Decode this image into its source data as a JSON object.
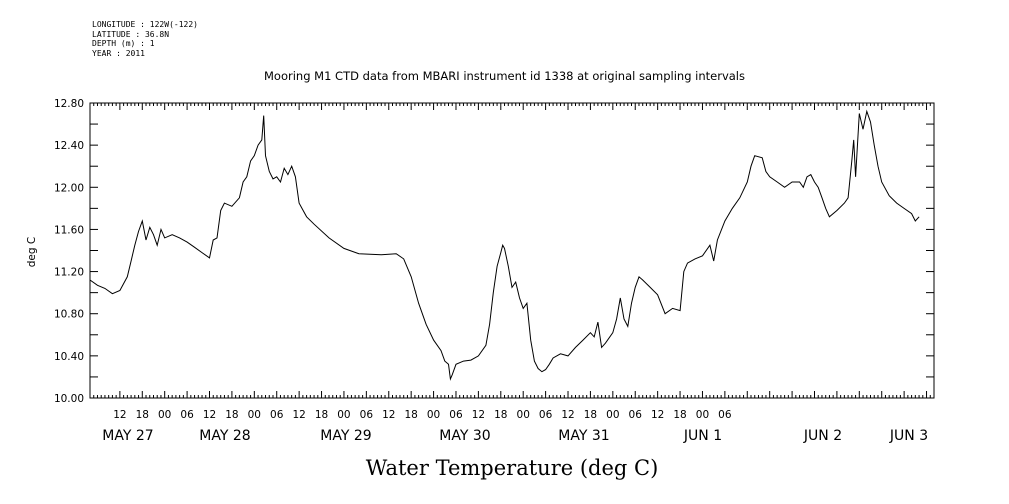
{
  "meta": {
    "longitude": "LONGITUDE : 122W(-122)",
    "latitude": "LATITUDE : 36.8N",
    "depth": "DEPTH (m) : 1",
    "year": "YEAR : 2011"
  },
  "chart_data": {
    "type": "line",
    "title": "Mooring M1 CTD data from MBARI instrument id 1338 at original sampling intervals",
    "xlabel": "Water Temperature (deg C)",
    "ylabel": "deg C",
    "ylim": [
      10.0,
      12.8
    ],
    "yticks": [
      "10.00",
      "10.40",
      "10.80",
      "11.20",
      "11.60",
      "12.00",
      "12.40",
      "12.80"
    ],
    "x_hour_labels": [
      "12",
      "18",
      "00",
      "06",
      "12",
      "18",
      "00",
      "06",
      "12",
      "18",
      "00",
      "06",
      "12",
      "18",
      "00",
      "06",
      "12",
      "18",
      "00",
      "06",
      "12",
      "18",
      "00",
      "06",
      "12",
      "18",
      "00",
      "06"
    ],
    "x_day_labels": [
      "MAY 27",
      "MAY 28",
      "MAY 29",
      "MAY 30",
      "MAY 31",
      "JUN  1",
      "JUN  2",
      "JUN  3"
    ],
    "series": [
      {
        "values": [
          [
            0.0,
            11.12
          ],
          [
            2.0,
            11.07
          ],
          [
            4.0,
            11.04
          ],
          [
            6.0,
            10.99
          ],
          [
            8.0,
            11.02
          ],
          [
            10.0,
            11.15
          ],
          [
            11.0,
            11.3
          ],
          [
            12.0,
            11.45
          ],
          [
            13.0,
            11.58
          ],
          [
            14.0,
            11.68
          ],
          [
            15.0,
            11.5
          ],
          [
            16.0,
            11.62
          ],
          [
            17.0,
            11.55
          ],
          [
            18.0,
            11.45
          ],
          [
            19.0,
            11.6
          ],
          [
            20.0,
            11.52
          ],
          [
            22.0,
            11.55
          ],
          [
            24.0,
            11.52
          ],
          [
            26.0,
            11.48
          ],
          [
            28.0,
            11.43
          ],
          [
            30.0,
            11.38
          ],
          [
            32.0,
            11.33
          ],
          [
            33.0,
            11.5
          ],
          [
            34.0,
            11.52
          ],
          [
            35.0,
            11.78
          ],
          [
            36.0,
            11.85
          ],
          [
            38.0,
            11.82
          ],
          [
            40.0,
            11.9
          ],
          [
            41.0,
            12.05
          ],
          [
            42.0,
            12.1
          ],
          [
            43.0,
            12.25
          ],
          [
            44.0,
            12.3
          ],
          [
            45.0,
            12.4
          ],
          [
            46.0,
            12.45
          ],
          [
            46.5,
            12.68
          ],
          [
            47.0,
            12.3
          ],
          [
            48.0,
            12.15
          ],
          [
            49.0,
            12.08
          ],
          [
            50.0,
            12.1
          ],
          [
            51.0,
            12.05
          ],
          [
            52.0,
            12.18
          ],
          [
            53.0,
            12.12
          ],
          [
            54.0,
            12.2
          ],
          [
            55.0,
            12.1
          ],
          [
            56.0,
            11.85
          ],
          [
            58.0,
            11.72
          ],
          [
            60.0,
            11.65
          ],
          [
            64.0,
            11.52
          ],
          [
            68.0,
            11.42
          ],
          [
            72.0,
            11.37
          ],
          [
            78.0,
            11.36
          ],
          [
            82.0,
            11.37
          ],
          [
            84.0,
            11.32
          ],
          [
            86.0,
            11.15
          ],
          [
            88.0,
            10.9
          ],
          [
            90.0,
            10.7
          ],
          [
            92.0,
            10.55
          ],
          [
            94.0,
            10.45
          ],
          [
            95.0,
            10.35
          ],
          [
            96.0,
            10.32
          ],
          [
            96.5,
            10.18
          ],
          [
            97.0,
            10.22
          ],
          [
            98.0,
            10.32
          ],
          [
            100.0,
            10.35
          ],
          [
            102.0,
            10.36
          ],
          [
            104.0,
            10.4
          ],
          [
            106.0,
            10.5
          ],
          [
            107.0,
            10.7
          ],
          [
            108.0,
            11.0
          ],
          [
            109.0,
            11.25
          ],
          [
            110.0,
            11.38
          ],
          [
            110.5,
            11.45
          ],
          [
            111.0,
            11.42
          ],
          [
            112.0,
            11.25
          ],
          [
            113.0,
            11.05
          ],
          [
            114.0,
            11.1
          ],
          [
            115.0,
            10.95
          ],
          [
            116.0,
            10.85
          ],
          [
            117.0,
            10.9
          ],
          [
            118.0,
            10.55
          ],
          [
            119.0,
            10.35
          ],
          [
            120.0,
            10.28
          ],
          [
            121.0,
            10.25
          ],
          [
            122.0,
            10.27
          ],
          [
            123.0,
            10.32
          ],
          [
            124.0,
            10.38
          ],
          [
            126.0,
            10.42
          ],
          [
            128.0,
            10.4
          ],
          [
            130.0,
            10.48
          ],
          [
            132.0,
            10.55
          ],
          [
            134.0,
            10.62
          ],
          [
            135.0,
            10.58
          ],
          [
            136.0,
            10.72
          ],
          [
            137.0,
            10.48
          ],
          [
            138.0,
            10.52
          ],
          [
            140.0,
            10.62
          ],
          [
            141.0,
            10.75
          ],
          [
            142.0,
            10.95
          ],
          [
            143.0,
            10.75
          ],
          [
            144.0,
            10.68
          ],
          [
            145.0,
            10.9
          ],
          [
            146.0,
            11.05
          ],
          [
            147.0,
            11.15
          ],
          [
            148.0,
            11.12
          ],
          [
            150.0,
            11.05
          ],
          [
            152.0,
            10.98
          ],
          [
            154.0,
            10.8
          ],
          [
            156.0,
            10.85
          ],
          [
            158.0,
            10.83
          ],
          [
            159.0,
            11.2
          ],
          [
            160.0,
            11.28
          ],
          [
            162.0,
            11.32
          ],
          [
            164.0,
            11.35
          ],
          [
            166.0,
            11.45
          ],
          [
            167.0,
            11.3
          ],
          [
            168.0,
            11.5
          ],
          [
            170.0,
            11.68
          ],
          [
            172.0,
            11.8
          ],
          [
            174.0,
            11.9
          ],
          [
            176.0,
            12.05
          ],
          [
            177.0,
            12.2
          ],
          [
            178.0,
            12.3
          ],
          [
            180.0,
            12.28
          ],
          [
            181.0,
            12.15
          ],
          [
            182.0,
            12.1
          ],
          [
            184.0,
            12.05
          ],
          [
            186.0,
            12.0
          ],
          [
            188.0,
            12.05
          ],
          [
            190.0,
            12.05
          ],
          [
            191.0,
            12.0
          ],
          [
            192.0,
            12.1
          ],
          [
            193.0,
            12.12
          ],
          [
            194.0,
            12.05
          ],
          [
            195.0,
            12.0
          ],
          [
            196.0,
            11.9
          ],
          [
            197.0,
            11.8
          ],
          [
            198.0,
            11.72
          ],
          [
            200.0,
            11.78
          ],
          [
            202.0,
            11.85
          ],
          [
            203.0,
            11.9
          ],
          [
            204.0,
            12.25
          ],
          [
            204.5,
            12.45
          ],
          [
            205.0,
            12.1
          ],
          [
            206.0,
            12.7
          ],
          [
            207.0,
            12.55
          ],
          [
            208.0,
            12.72
          ],
          [
            209.0,
            12.62
          ],
          [
            210.0,
            12.4
          ],
          [
            211.0,
            12.2
          ],
          [
            212.0,
            12.05
          ],
          [
            214.0,
            11.92
          ],
          [
            216.0,
            11.85
          ],
          [
            218.0,
            11.8
          ],
          [
            220.0,
            11.75
          ],
          [
            221.0,
            11.68
          ],
          [
            222.0,
            11.72
          ]
        ]
      }
    ]
  }
}
